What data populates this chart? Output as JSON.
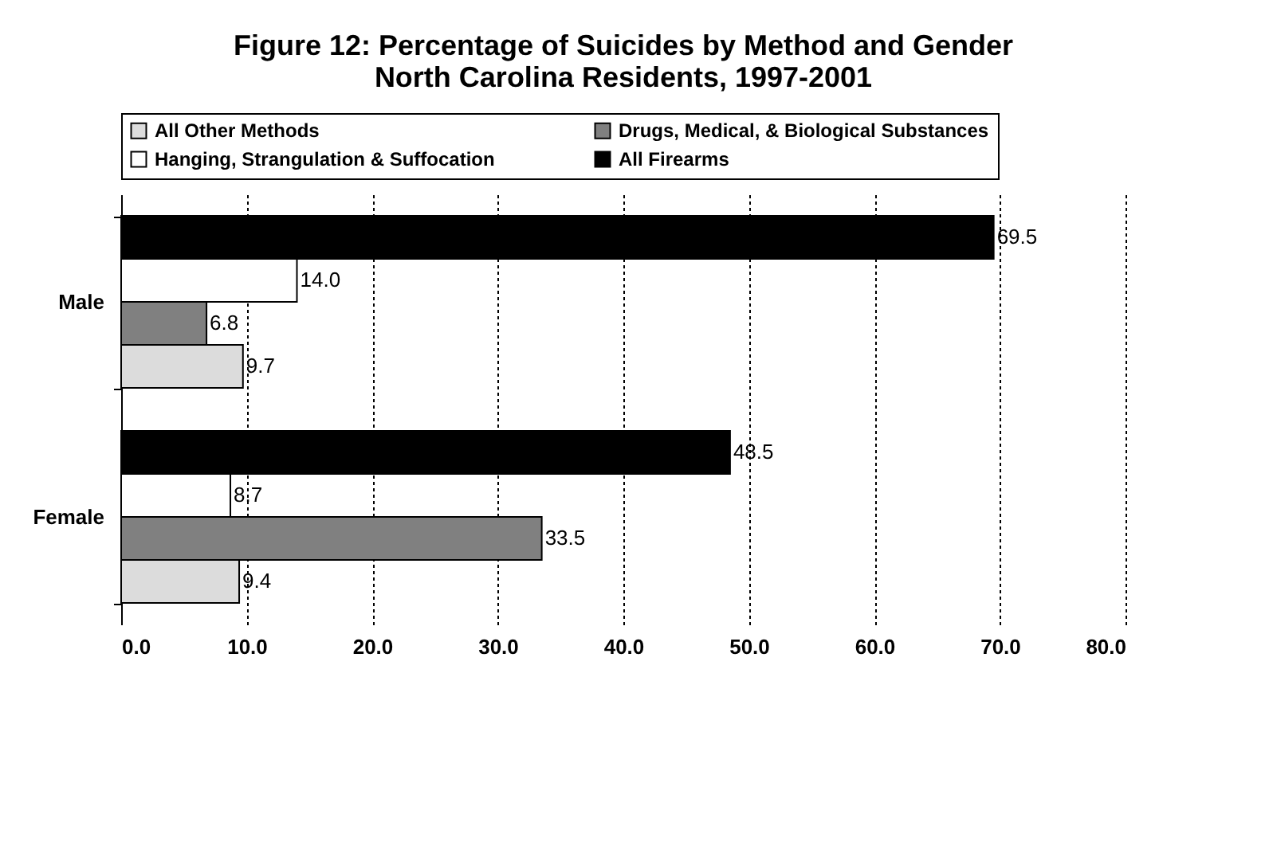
{
  "chart_data": {
    "type": "bar",
    "orientation": "horizontal",
    "title": "Figure 12: Percentage of Suicides by Method and Gender\nNorth Carolina Residents, 1997-2001",
    "categories": [
      "Male",
      "Female"
    ],
    "series": [
      {
        "name": "All Other Methods",
        "color": "#dcdcdc",
        "values": [
          9.7,
          9.4
        ],
        "value_labels": [
          "9.7",
          "9.4"
        ]
      },
      {
        "name": "Drugs, Medical, & Biological Substances",
        "color": "#808080",
        "values": [
          6.8,
          33.5
        ],
        "value_labels": [
          "6.8",
          "33.5"
        ]
      },
      {
        "name": "Hanging, Strangulation & Suffocation",
        "color": "#ffffff",
        "values": [
          14,
          8.7
        ],
        "value_labels": [
          "14.0",
          "8.7"
        ]
      },
      {
        "name": "All Firearms",
        "color": "#000000",
        "values": [
          69.5,
          48.5
        ],
        "value_labels": [
          "69.5",
          "48.5"
        ]
      }
    ],
    "xlim": [
      0,
      80
    ],
    "xticks": [
      {
        "value": 0,
        "label": "0.0"
      },
      {
        "value": 10,
        "label": "10.0"
      },
      {
        "value": 20,
        "label": "20.0"
      },
      {
        "value": 30,
        "label": "30.0"
      },
      {
        "value": 40,
        "label": "40.0"
      },
      {
        "value": 50,
        "label": "50.0"
      },
      {
        "value": 60,
        "label": "60.0"
      },
      {
        "value": 70,
        "label": "70.0"
      },
      {
        "value": 80,
        "label": "80.0"
      }
    ],
    "grid": "x",
    "legend": "top"
  }
}
